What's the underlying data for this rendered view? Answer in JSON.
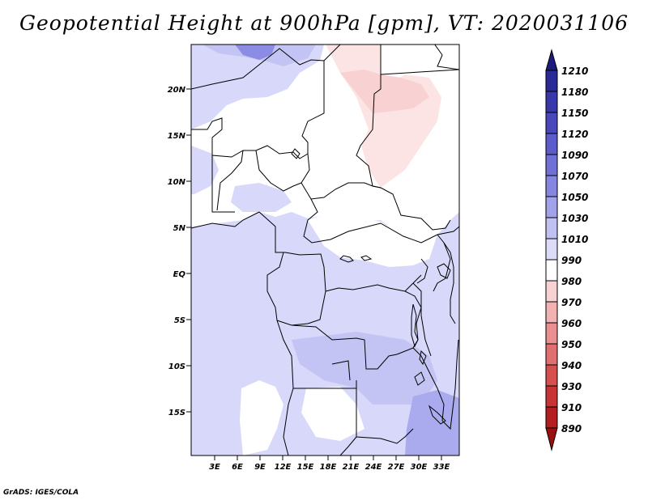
{
  "title": "Geopotential Height at 900hPa [gpm], VT: 2020031106",
  "credit": "GrADS: IGES/COLA",
  "map": {
    "lat_labels": [
      "20N",
      "15N",
      "10N",
      "5N",
      "EQ",
      "5S",
      "10S",
      "15S"
    ],
    "lon_labels": [
      "3E",
      "6E",
      "9E",
      "12E",
      "15E",
      "18E",
      "21E",
      "24E",
      "27E",
      "30E",
      "33E"
    ],
    "colors": {
      "light_blue": "#d8d8fa",
      "mid_blue": "#c4c4f4",
      "violet": "#aaaaee",
      "deep_blue": "#8c8ce4",
      "light_pink": "#fce4e4",
      "pink": "#f8d2d2"
    }
  },
  "colorbar": {
    "labels": [
      "1210",
      "1180",
      "1150",
      "1120",
      "1090",
      "1070",
      "1050",
      "1030",
      "1010",
      "990",
      "980",
      "970",
      "960",
      "950",
      "940",
      "930",
      "910",
      "890"
    ],
    "colors": [
      "#1c1c7c",
      "#2a2a96",
      "#3838aa",
      "#4848bc",
      "#5c5cca",
      "#7070d6",
      "#8686e0",
      "#a2a2ea",
      "#c0c0f2",
      "#dcdcf8",
      "#ffffff",
      "#f8d2d2",
      "#f2b2b2",
      "#ea9090",
      "#e07070",
      "#d65050",
      "#c83434",
      "#b41e1e",
      "#9a1010"
    ]
  }
}
